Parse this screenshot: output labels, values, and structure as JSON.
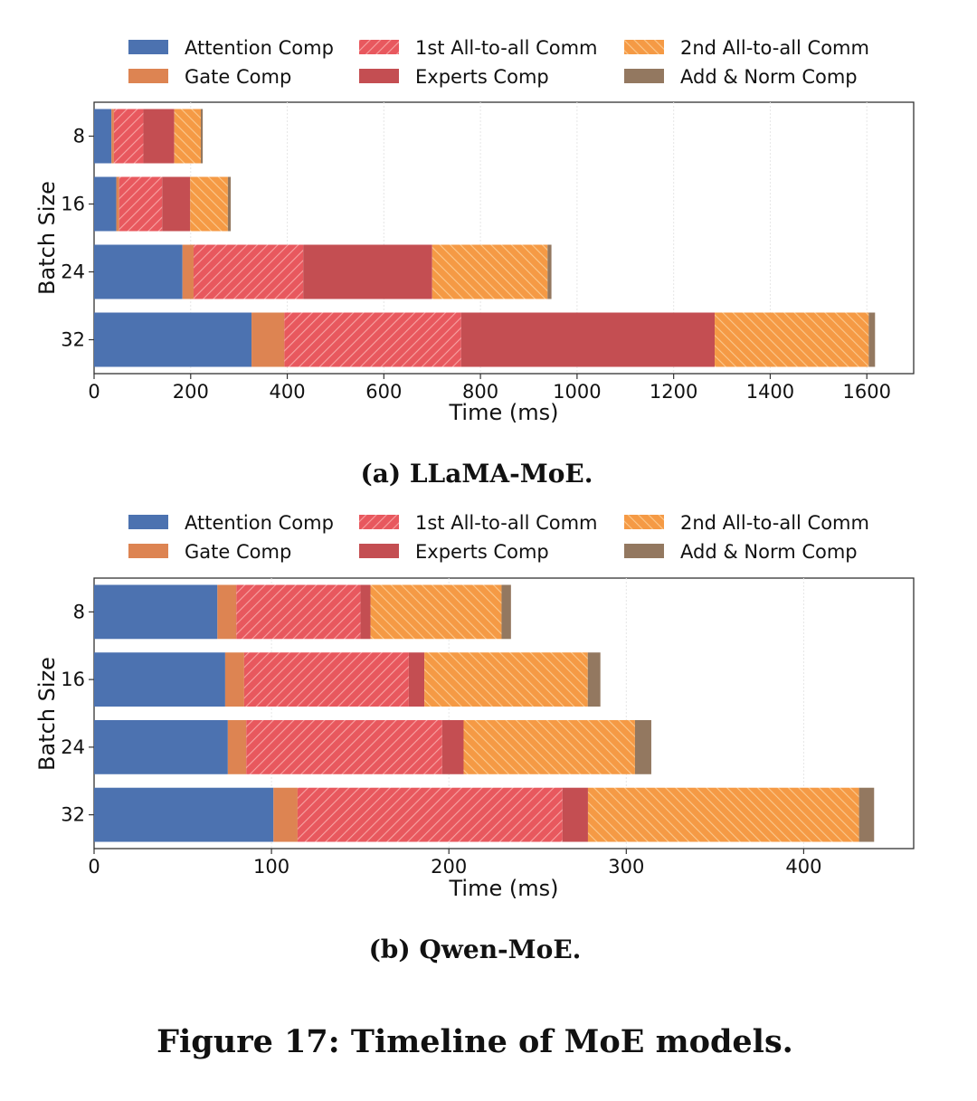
{
  "figure_caption": "Figure 17: Timeline of MoE models.",
  "colors": {
    "Attention Comp": "#4C72B0",
    "Gate Comp": "#DD8452",
    "1st All-to-all Comm": "#E8585E",
    "Experts Comp": "#C44E52",
    "2nd All-to-all Comm": "#F59A45",
    "Add & Norm Comp": "#937860"
  },
  "legend": [
    {
      "label": "Attention Comp",
      "hatch": "none"
    },
    {
      "label": "1st All-to-all Comm",
      "hatch": "forward"
    },
    {
      "label": "2nd All-to-all Comm",
      "hatch": "backward"
    },
    {
      "label": "Gate Comp",
      "hatch": "none"
    },
    {
      "label": "Experts Comp",
      "hatch": "none"
    },
    {
      "label": "Add & Norm Comp",
      "hatch": "none"
    }
  ],
  "chart_data": [
    {
      "type": "bar",
      "orientation": "horizontal",
      "stacked": true,
      "caption": "(a) LLaMA-MoE.",
      "xlabel": "Time (ms)",
      "ylabel": "Batch Size",
      "xlim": [
        0,
        1697
      ],
      "xticks": [
        0,
        200,
        400,
        600,
        800,
        1000,
        1200,
        1400,
        1600
      ],
      "grid": "vertical, light",
      "legend_position": "top",
      "categories": [
        "8",
        "16",
        "24",
        "32"
      ],
      "series": [
        {
          "name": "Attention Comp",
          "values": [
            36,
            46,
            183,
            326
          ]
        },
        {
          "name": "Gate Comp",
          "values": [
            5,
            6,
            23,
            68
          ]
        },
        {
          "name": "1st All-to-all Comm",
          "values": [
            61,
            89,
            227,
            366
          ]
        },
        {
          "name": "Experts Comp",
          "values": [
            64,
            58,
            267,
            525
          ]
        },
        {
          "name": "2nd All-to-all Comm",
          "values": [
            55,
            78,
            239,
            319
          ]
        },
        {
          "name": "Add & Norm Comp",
          "values": [
            4,
            6,
            8,
            13
          ]
        }
      ]
    },
    {
      "type": "bar",
      "orientation": "horizontal",
      "stacked": true,
      "caption": "(b) Qwen-MoE.",
      "xlabel": "Time (ms)",
      "ylabel": "Batch Size",
      "xlim": [
        0,
        462
      ],
      "xticks": [
        0,
        100,
        200,
        300,
        400
      ],
      "grid": "vertical, light",
      "legend_position": "top",
      "categories": [
        "8",
        "16",
        "24",
        "32"
      ],
      "series": [
        {
          "name": "Attention Comp",
          "values": [
            69.5,
            73.9,
            75.4,
            101.1
          ]
        },
        {
          "name": "Gate Comp",
          "values": [
            10.7,
            10.7,
            10.4,
            13.6
          ]
        },
        {
          "name": "1st All-to-all Comm",
          "values": [
            70.0,
            92.8,
            110.4,
            149.3
          ]
        },
        {
          "name": "Experts Comp",
          "values": [
            5.6,
            8.8,
            12.1,
            14.4
          ]
        },
        {
          "name": "2nd All-to-all Comm",
          "values": [
            73.9,
            92.1,
            96.6,
            152.8
          ]
        },
        {
          "name": "Add & Norm Comp",
          "values": [
            5.3,
            7.1,
            9.2,
            8.5
          ]
        }
      ]
    }
  ]
}
